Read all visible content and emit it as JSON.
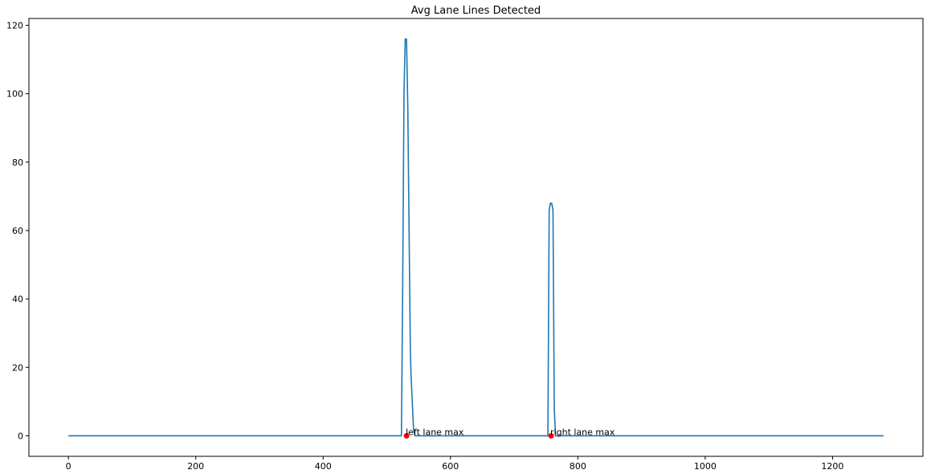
{
  "chart_data": {
    "type": "line",
    "title": "Avg Lane Lines Detected",
    "xlabel": "",
    "ylabel": "",
    "xlim": [
      -62,
      1342
    ],
    "ylim": [
      -6,
      122
    ],
    "xticks": [
      0,
      200,
      400,
      600,
      800,
      1000,
      1200
    ],
    "yticks": [
      0,
      20,
      40,
      60,
      80,
      100,
      120
    ],
    "grid": false,
    "series": [
      {
        "color": "#1f77b4",
        "x": [
          0,
          523,
          525,
          527,
          529,
          531,
          533,
          535,
          537,
          538,
          540,
          542,
          544,
          1,
          750,
          753,
          755,
          757,
          759,
          761,
          763,
          765,
          1280
        ],
        "y": [
          0,
          0,
          45,
          100,
          116,
          116,
          96,
          60,
          25,
          18,
          10,
          2,
          0,
          0,
          0,
          0,
          66,
          68,
          68,
          66,
          8,
          0,
          0
        ]
      }
    ],
    "markers": [
      {
        "x": 531,
        "y": 0,
        "label": "left lane max",
        "color": "#ff0000"
      },
      {
        "x": 758,
        "y": 0,
        "label": "right lane max",
        "color": "#ff0000"
      }
    ]
  }
}
